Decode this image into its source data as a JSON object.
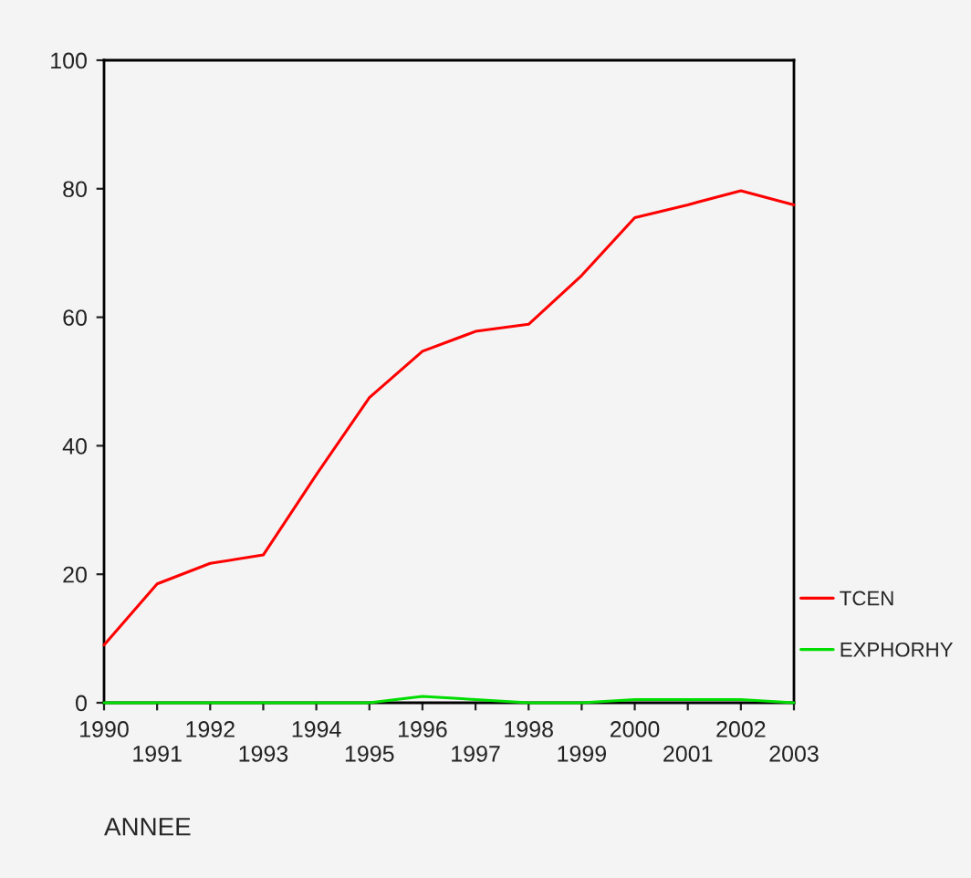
{
  "chart_data": {
    "type": "line",
    "xlabel": "ANNEE",
    "categories": [
      "1990",
      "1991",
      "1992",
      "1993",
      "1994",
      "1995",
      "1996",
      "1997",
      "1998",
      "1999",
      "2000",
      "2001",
      "2002",
      "2003"
    ],
    "series": [
      {
        "name": "TCEN",
        "color": "#ff0000",
        "values": [
          9,
          18.5,
          21.7,
          23,
          35.5,
          47.5,
          54.7,
          57.8,
          58.9,
          66.5,
          75.5,
          77.5,
          79.7,
          77.5
        ]
      },
      {
        "name": "EXPHORHY",
        "color": "#00dd00",
        "values": [
          0,
          0,
          0,
          0,
          0,
          0,
          1,
          0.5,
          0,
          0,
          0.5,
          0.5,
          0.5,
          0
        ]
      }
    ],
    "ylim": [
      0,
      100
    ],
    "yticks": [
      0,
      20,
      40,
      60,
      80,
      100
    ],
    "grid": false,
    "legend": "right",
    "marker": "none",
    "line_style": "solid"
  }
}
